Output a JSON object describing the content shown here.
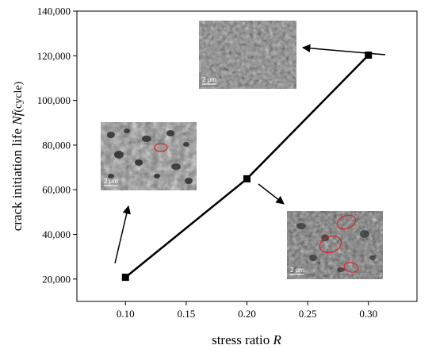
{
  "chart_data": {
    "type": "line",
    "title": "",
    "xlabel": "stress ratio",
    "xlabel_symbol": "R",
    "ylabel": "crack initiation life",
    "ylabel_symbol": "Nf",
    "ylabel_unit": "(cycle)",
    "xlim": [
      0.06,
      0.34
    ],
    "ylim": [
      10000,
      140000
    ],
    "x_ticks": [
      "0.10",
      "0.15",
      "0.20",
      "0.25",
      "0.30"
    ],
    "y_ticks": [
      "20,000",
      "40,000",
      "60,000",
      "80,000",
      "100,000",
      "120,000",
      "140,000"
    ],
    "grid": false,
    "legend": "none",
    "series": [
      {
        "x": [
          0.1,
          0.2,
          0.3
        ],
        "y": [
          20800,
          64900,
          120300
        ]
      }
    ],
    "insets": [
      {
        "kind": "SEM fractograph",
        "attached_to_x": 0.1,
        "scale_label": "2 μm",
        "red_circles": 1
      },
      {
        "kind": "SEM fractograph",
        "attached_to_x": 0.2,
        "scale_label": "2 μm",
        "red_circles": 3
      },
      {
        "kind": "SEM fractograph",
        "attached_to_x": 0.3,
        "scale_label": "2 μm",
        "red_circles": 0
      }
    ]
  },
  "colors": {
    "line": "#000000",
    "marker": "#000000",
    "circle": "#d42a2a"
  }
}
